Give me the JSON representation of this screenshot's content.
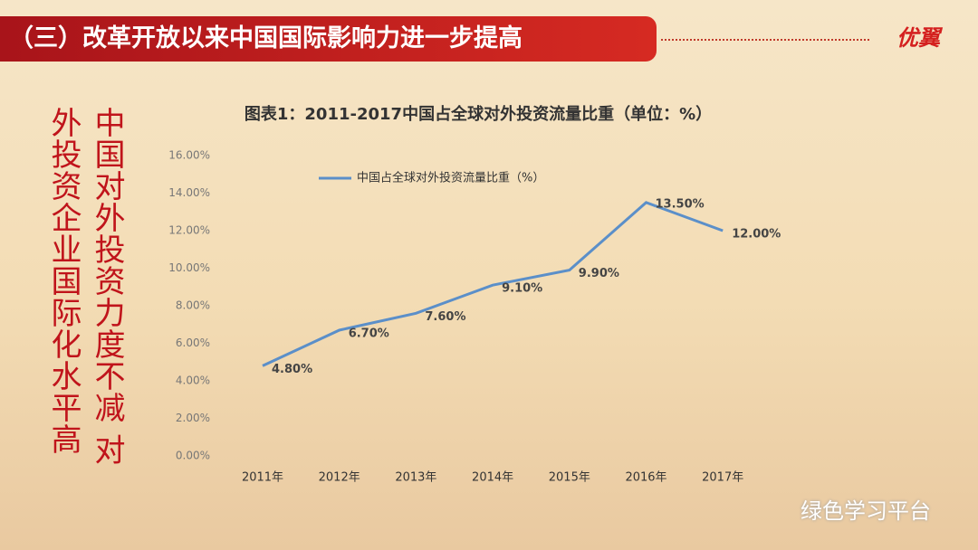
{
  "header": {
    "title": "（三）改革开放以来中国国际影响力进一步提高",
    "logo": "优翼"
  },
  "side_text": {
    "columns": [
      "中国对外投资力度不减 对",
      "外投资企业国际化水平高"
    ]
  },
  "watermark": "绿色学习平台",
  "chart_data": {
    "type": "line",
    "title": "图表1：2011-2017中国占全球对外投资流量比重（单位：%）",
    "categories": [
      "2011年",
      "2012年",
      "2013年",
      "2014年",
      "2015年",
      "2016年",
      "2017年"
    ],
    "series": [
      {
        "name": "中国占全球对外投资流量比重（%）",
        "color": "#5b8fc9",
        "values": [
          4.8,
          6.7,
          7.6,
          9.1,
          9.9,
          13.5,
          12.0
        ],
        "value_labels": [
          "4.80%",
          "6.70%",
          "7.60%",
          "9.10%",
          "9.90%",
          "13.50%",
          "12.00%"
        ]
      }
    ],
    "ylim": [
      0,
      16
    ],
    "yticks": [
      {
        "value": 0,
        "label": "0.00%"
      },
      {
        "value": 2,
        "label": "2.00%"
      },
      {
        "value": 4,
        "label": "4.00%"
      },
      {
        "value": 6,
        "label": "6.00%"
      },
      {
        "value": 8,
        "label": "8.00%"
      },
      {
        "value": 10,
        "label": "10.00%"
      },
      {
        "value": 12,
        "label": "12.00%"
      },
      {
        "value": 14,
        "label": "14.00%"
      },
      {
        "value": 16,
        "label": "16.00%"
      }
    ],
    "grid": false,
    "legend": "top-left"
  }
}
